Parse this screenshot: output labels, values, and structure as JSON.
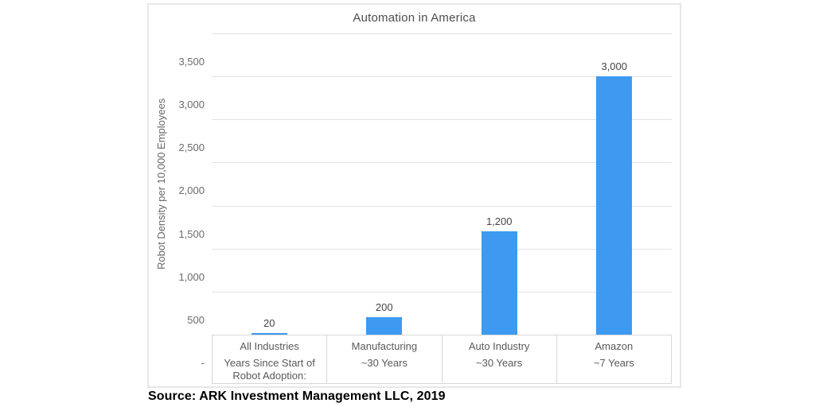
{
  "page": {
    "source_note": "Source: ARK Investment Management LLC, 2019"
  },
  "chart_data": {
    "type": "bar",
    "title": "Automation in America",
    "xlabel": "",
    "ylabel": "Robot Density per 10,000 Employees",
    "categories": [
      "All Industries",
      "Manufacturing",
      "Auto Industry",
      "Amazon"
    ],
    "category_sub_labels": [
      "Years Since Start of Robot Adoption:",
      "~30 Years",
      "~30 Years",
      "~7 Years"
    ],
    "values": [
      20,
      200,
      1200,
      3000
    ],
    "value_labels": [
      "20",
      "200",
      "1,200",
      "3,000"
    ],
    "ylim": [
      0,
      3500
    ],
    "ytick_interval": 500,
    "ytick_labels_top_to_bottom": [
      "3,500",
      "3,000",
      "2,500",
      "2,000",
      "1,500",
      "1,000",
      "500",
      "-"
    ],
    "grid": true,
    "legend": false,
    "bar_color": "#3d9af0",
    "gridline_color": "#e2e2e2"
  }
}
